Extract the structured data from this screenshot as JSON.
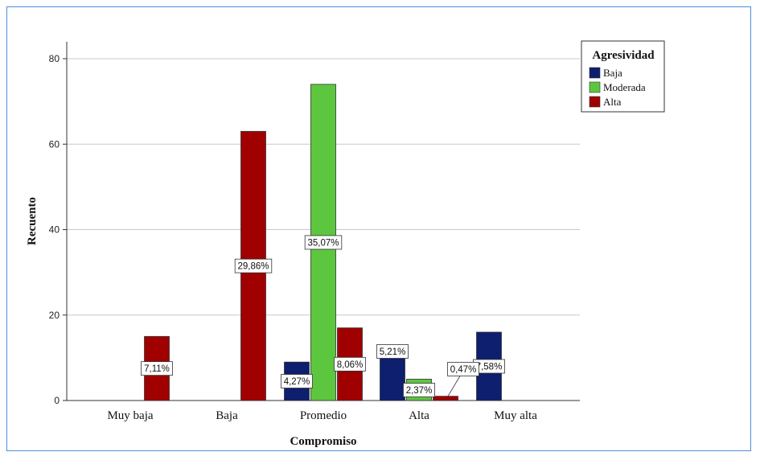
{
  "chart_data": {
    "type": "bar",
    "xlabel": "Compromiso",
    "ylabel": "Recuento",
    "ylim": [
      0,
      80
    ],
    "yticks": [
      0,
      20,
      40,
      60,
      80
    ],
    "grid": true,
    "legend_position": "top-right",
    "legend_title": "Agresividad",
    "categories": [
      "Muy baja",
      "Baja",
      "Promedio",
      "Alta",
      "Muy alta"
    ],
    "series": [
      {
        "name": "Baja",
        "color": "#0d1f6e",
        "values": [
          0,
          0,
          9,
          11,
          16
        ],
        "labels": [
          "",
          "",
          "4,27%",
          "5,21%",
          "7,58%"
        ]
      },
      {
        "name": "Moderada",
        "color": "#5dc63f",
        "values": [
          0,
          0,
          74,
          5,
          0
        ],
        "labels": [
          "",
          "",
          "35,07%",
          "2,37%",
          ""
        ]
      },
      {
        "name": "Alta",
        "color": "#a00000",
        "values": [
          15,
          63,
          17,
          1,
          0
        ],
        "labels": [
          "7,11%",
          "29,86%",
          "8,06%",
          "0,47%",
          ""
        ]
      }
    ]
  }
}
